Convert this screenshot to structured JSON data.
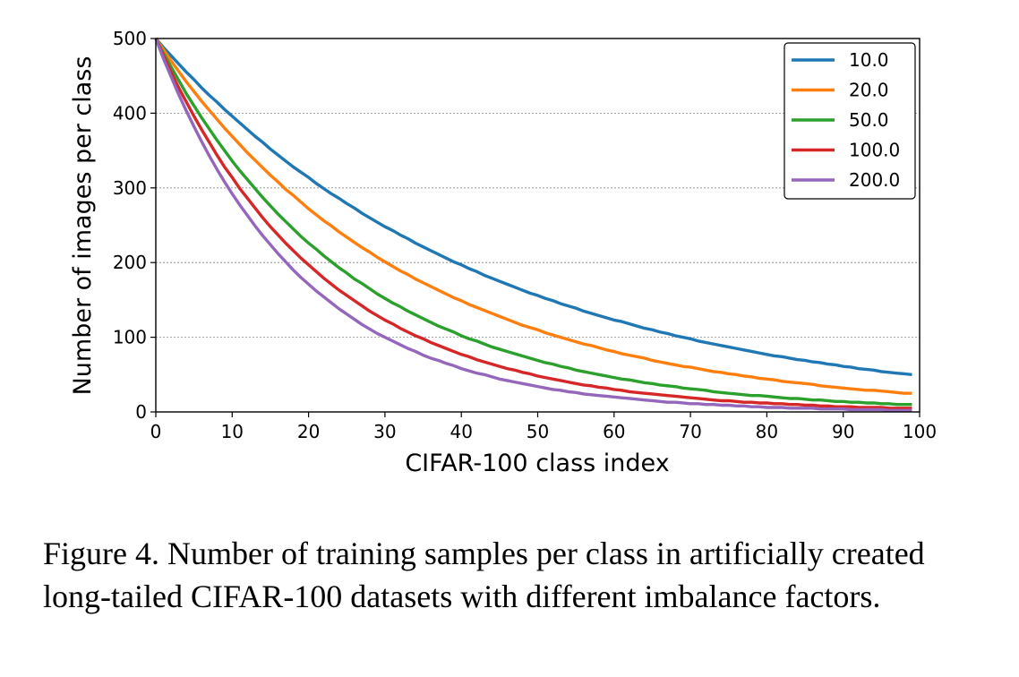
{
  "chart_data": {
    "type": "line",
    "xlabel": "CIFAR-100 class index",
    "ylabel": "Number of images per class",
    "xlim": [
      0,
      100
    ],
    "ylim": [
      0,
      500
    ],
    "xticks": [
      0,
      10,
      20,
      30,
      40,
      50,
      60,
      70,
      80,
      90,
      100
    ],
    "yticks": [
      0,
      100,
      200,
      300,
      400,
      500
    ],
    "grid": "horizontal dotted",
    "legend_position": "top-right",
    "n_classes": 100,
    "max_per_class": 500,
    "series": [
      {
        "name": "10.0",
        "imbalance_factor": 10,
        "color": "#1f77b4"
      },
      {
        "name": "20.0",
        "imbalance_factor": 20,
        "color": "#ff7f0e"
      },
      {
        "name": "50.0",
        "imbalance_factor": 50,
        "color": "#2ca02c"
      },
      {
        "name": "100.0",
        "imbalance_factor": 100,
        "color": "#d62728"
      },
      {
        "name": "200.0",
        "imbalance_factor": 200,
        "color": "#9467bd"
      }
    ]
  },
  "caption": "Figure 4. Number of training samples per class in artificially created long-tailed CIFAR-100 datasets with different imbalance factors."
}
